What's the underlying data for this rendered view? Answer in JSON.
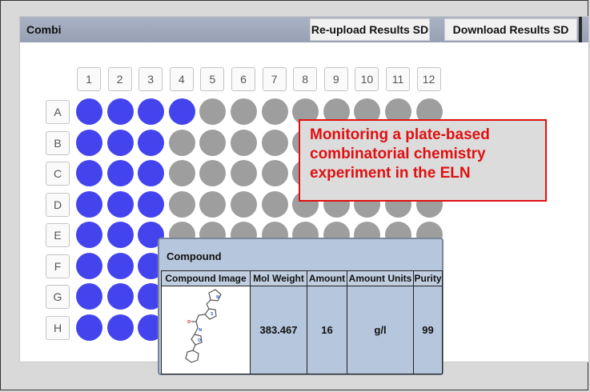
{
  "panel": {
    "title": "Combi",
    "reupload_label": "Re-upload Results SD",
    "download_label": "Download Results SD"
  },
  "plate": {
    "columns": [
      "1",
      "2",
      "3",
      "4",
      "5",
      "6",
      "7",
      "8",
      "9",
      "10",
      "11",
      "12"
    ],
    "rows": [
      "A",
      "B",
      "C",
      "D",
      "E",
      "F",
      "G",
      "H"
    ],
    "filled_counts": {
      "A": 4,
      "B": 3,
      "C": 3,
      "D": 3,
      "E": 3,
      "F": 3,
      "G": 3,
      "H": 3
    },
    "colors": {
      "filled": "#4444ee",
      "empty": "#9e9e9e"
    }
  },
  "callout": {
    "text": "Monitoring a plate-based combinatorial chemistry experiment in the ELN",
    "color": "#e01010"
  },
  "compound_popup": {
    "title": "Compound",
    "headers": [
      "Compound Image",
      "Mol Weight",
      "Amount",
      "Amount Units",
      "Purity"
    ],
    "row": {
      "mol_weight": "383.467",
      "amount": "16",
      "amount_units": "g/l",
      "purity": "99"
    }
  }
}
